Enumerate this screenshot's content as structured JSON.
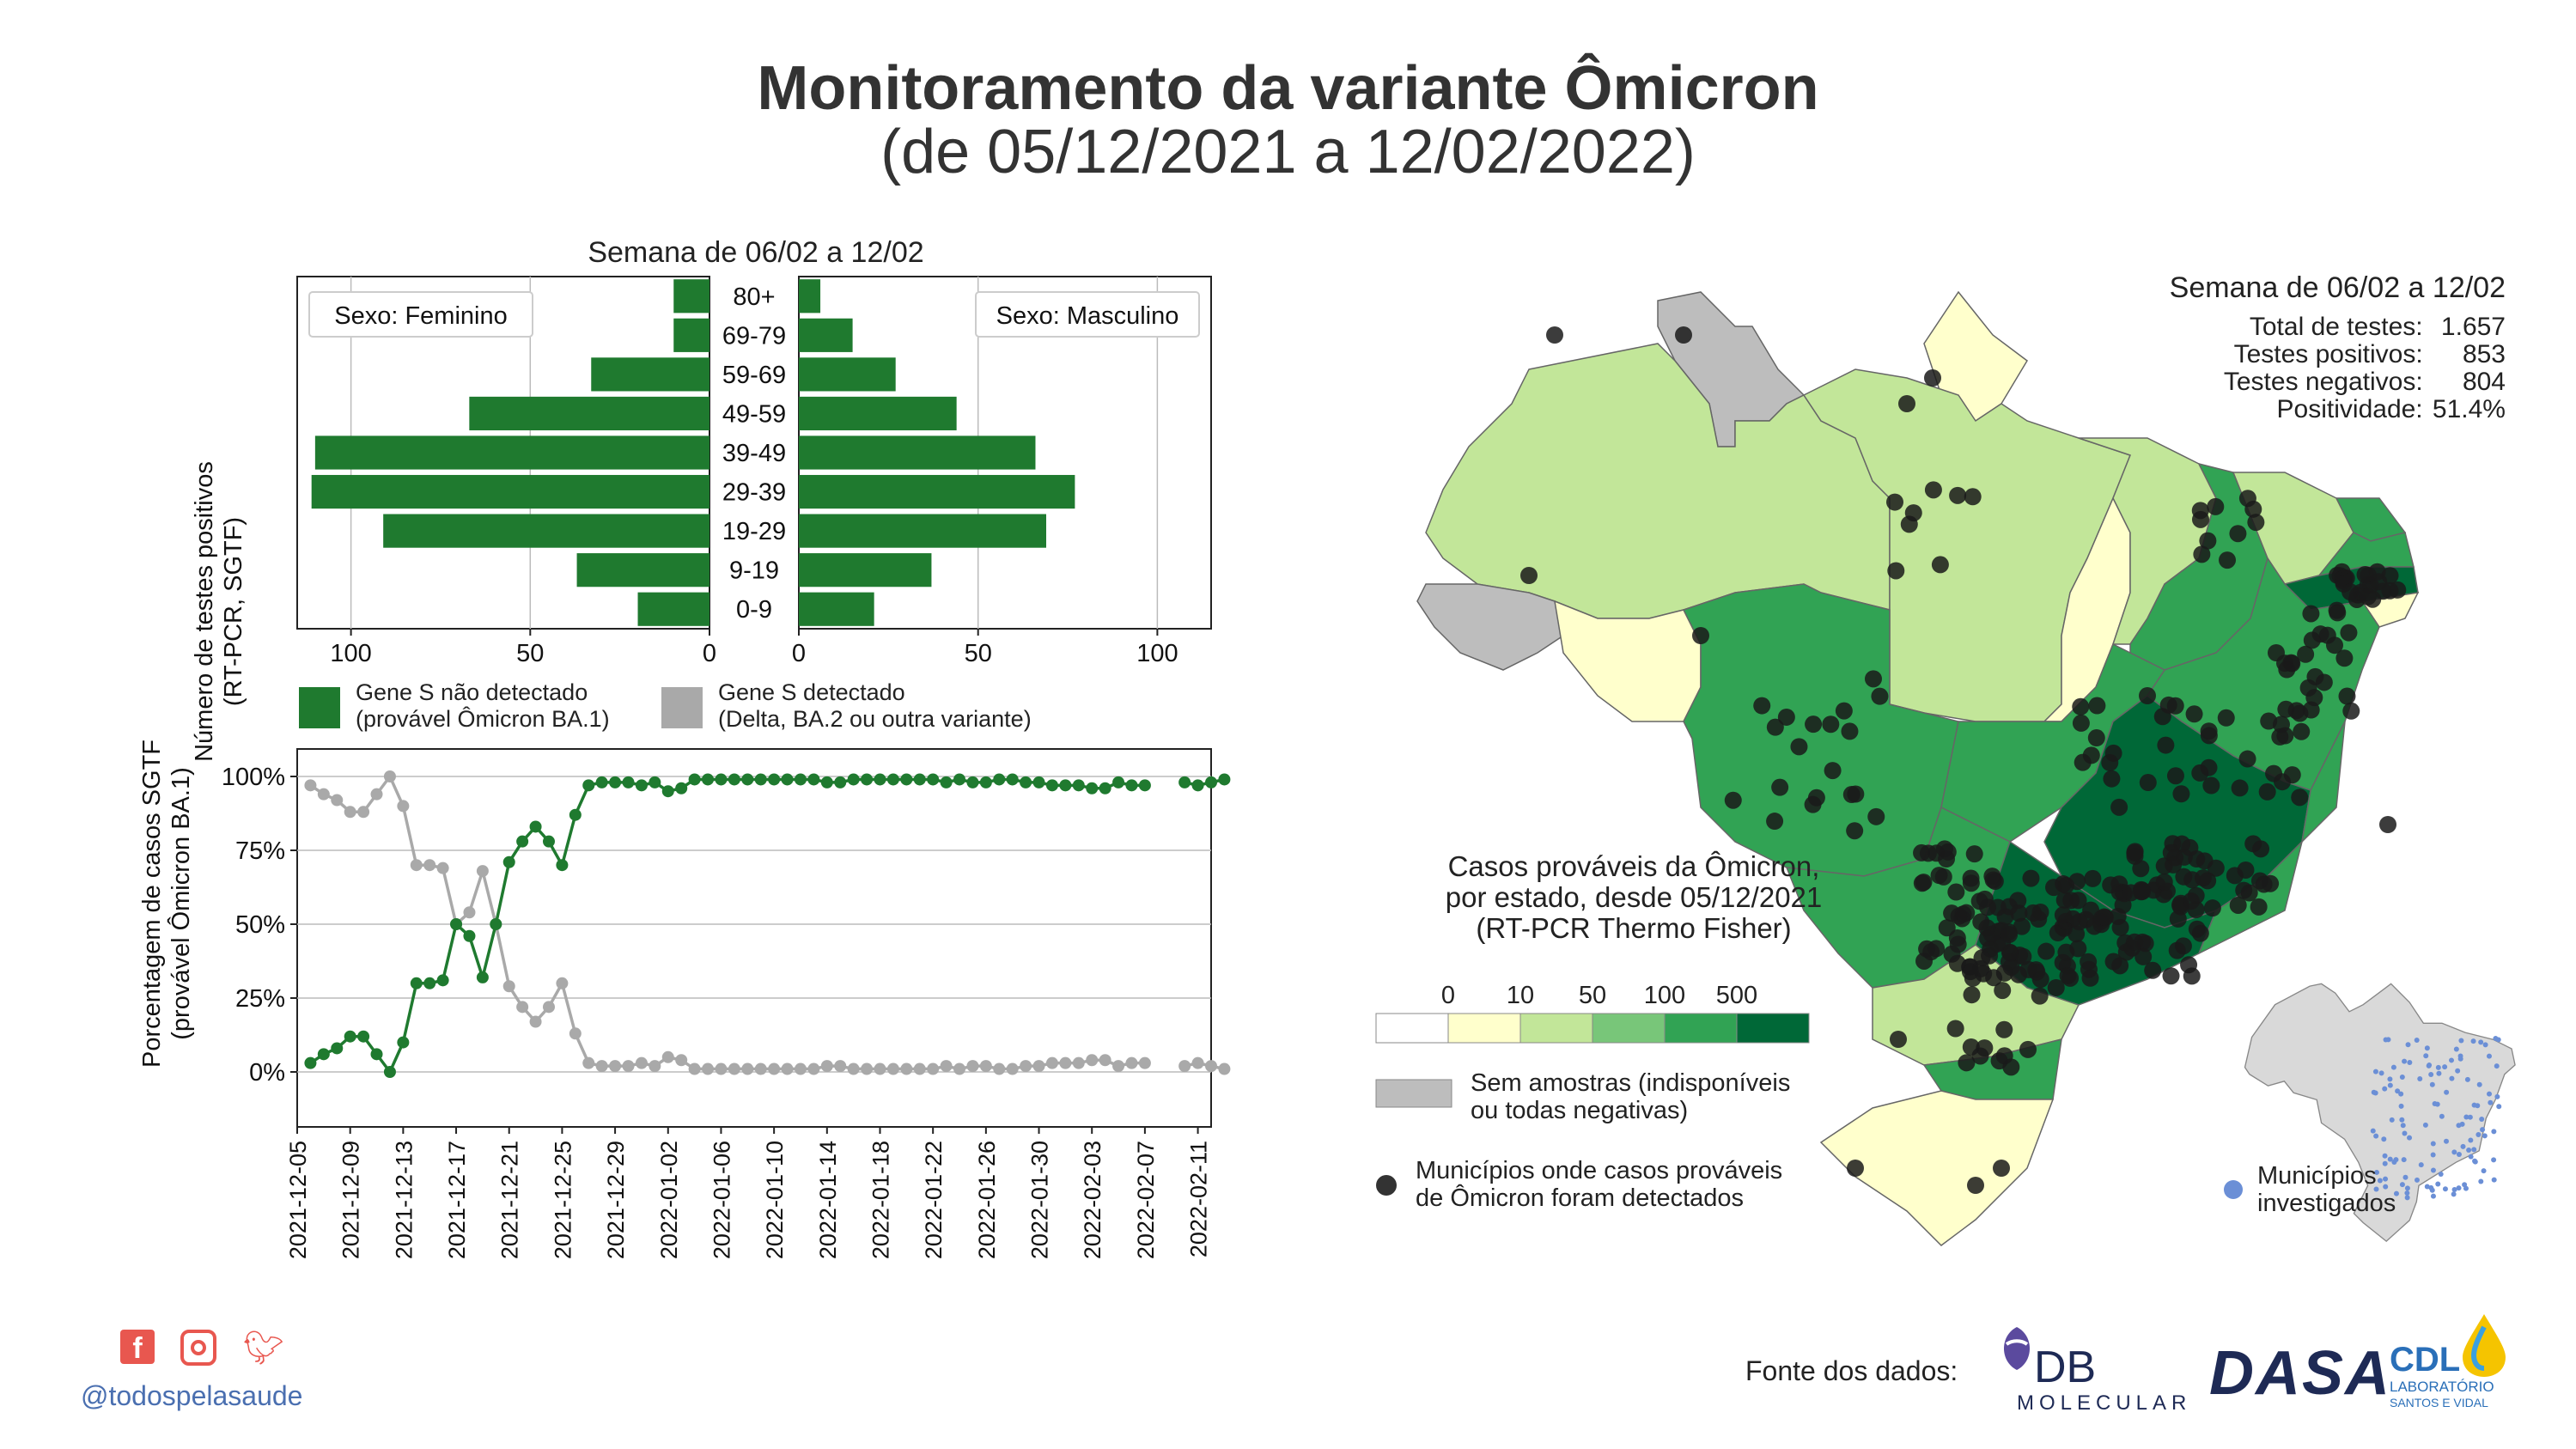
{
  "title": "Monitoramento da variante Ômicron",
  "subtitle": "(de 05/12/2021 a 12/02/2022)",
  "colors": {
    "green": "#1f7a2f",
    "gray": "#a9a9a9",
    "map_bins": [
      "#ffffff",
      "#ffffcc",
      "#c2e699",
      "#78c679",
      "#31a354",
      "#006837"
    ],
    "no_sample": "#bdbdbd",
    "investigated": "#6b8fd6"
  },
  "pyramid": {
    "title": "Semana de 06/02 a 12/02",
    "ylabel_line1": "Número de testes positivos",
    "ylabel_line2": "(RT-PCR, SGTF)",
    "female_label": "Sexo: Feminino",
    "male_label": "Sexo: Masculino",
    "age_groups": [
      "80+",
      "69-79",
      "59-69",
      "49-59",
      "39-49",
      "29-39",
      "19-29",
      "9-19",
      "0-9"
    ],
    "female": [
      10,
      10,
      33,
      67,
      110,
      111,
      91,
      37,
      20
    ],
    "male": [
      6,
      15,
      27,
      44,
      66,
      77,
      69,
      37,
      21
    ],
    "ticks_female": [
      "100",
      "50",
      "0"
    ],
    "ticks_male": [
      "0",
      "50",
      "100"
    ]
  },
  "legend_top": {
    "green_line1": "Gene S não detectado",
    "green_line2": "(provável Ômicron BA.1)",
    "gray_line1": "Gene S detectado",
    "gray_line2": "(Delta, BA.2 ou outra variante)"
  },
  "chart_data": [
    {
      "type": "bar",
      "title": "Semana de 06/02 a 12/02",
      "ylabel": "Número de testes positivos (RT-PCR, SGTF)",
      "categories": [
        "80+",
        "69-79",
        "59-69",
        "49-59",
        "39-49",
        "29-39",
        "19-29",
        "9-19",
        "0-9"
      ],
      "series": [
        {
          "name": "Sexo: Feminino",
          "values": [
            10,
            10,
            33,
            67,
            110,
            111,
            91,
            37,
            20
          ]
        },
        {
          "name": "Sexo: Masculino",
          "values": [
            6,
            15,
            27,
            44,
            66,
            77,
            69,
            37,
            21
          ]
        }
      ],
      "xlim": [
        0,
        115
      ]
    },
    {
      "type": "line",
      "ylabel": "Porcentagem de casos SGTF (provável Ômicron BA.1)",
      "ylim": [
        0,
        100
      ],
      "yticks": [
        "0%",
        "25%",
        "50%",
        "75%",
        "100%"
      ],
      "xticks": [
        "2021-12-05",
        "2021-12-09",
        "2021-12-13",
        "2021-12-17",
        "2021-12-21",
        "2021-12-25",
        "2021-12-29",
        "2022-01-02",
        "2022-01-06",
        "2022-01-10",
        "2022-01-14",
        "2022-01-18",
        "2022-01-22",
        "2022-01-26",
        "2022-01-30",
        "2022-02-03",
        "2022-02-07",
        "2022-02-11"
      ],
      "x_start": "2021-12-06",
      "series": [
        {
          "name": "Gene S não detectado (provável Ômicron BA.1)",
          "values": [
            3,
            6,
            8,
            12,
            12,
            6,
            0,
            10,
            30,
            30,
            31,
            50,
            46,
            32,
            50,
            71,
            78,
            83,
            78,
            70,
            87,
            97,
            98,
            98,
            98,
            97,
            98,
            95,
            96,
            99,
            99,
            99,
            99,
            99,
            99,
            99,
            99,
            99,
            99,
            98,
            98,
            99,
            99,
            99,
            99,
            99,
            99,
            99,
            98,
            99,
            98,
            98,
            99,
            99,
            98,
            98,
            97,
            97,
            97,
            96,
            96,
            98,
            97,
            97,
            null,
            null,
            98,
            97,
            98,
            99
          ]
        },
        {
          "name": "Gene S detectado (Delta, BA.2 ou outra variante)",
          "values": [
            97,
            94,
            92,
            88,
            88,
            94,
            100,
            90,
            70,
            70,
            69,
            50,
            54,
            68,
            50,
            29,
            22,
            17,
            22,
            30,
            13,
            3,
            2,
            2,
            2,
            3,
            2,
            5,
            4,
            1,
            1,
            1,
            1,
            1,
            1,
            1,
            1,
            1,
            1,
            2,
            2,
            1,
            1,
            1,
            1,
            1,
            1,
            1,
            2,
            1,
            2,
            2,
            1,
            1,
            2,
            2,
            3,
            3,
            3,
            4,
            4,
            2,
            3,
            3,
            null,
            null,
            2,
            3,
            2,
            1
          ]
        }
      ]
    }
  ],
  "line_chart": {
    "ylabel_line1": "Porcentagem de casos SGTF",
    "ylabel_line2": "(provável Ômicron BA.1)",
    "yticks": [
      "0%",
      "25%",
      "50%",
      "75%",
      "100%"
    ]
  },
  "map": {
    "stats_title": "Semana de 06/02 a 12/02",
    "stats": [
      {
        "label": "Total de testes:",
        "value": "1.657"
      },
      {
        "label": "Testes positivos:",
        "value": "853"
      },
      {
        "label": "Testes negativos:",
        "value": "804"
      },
      {
        "label": "Positividade:",
        "value": "51.4%"
      }
    ],
    "legend_title_1": "Casos prováveis da Ômicron,",
    "legend_title_2": "por estado, desde 05/12/2021",
    "legend_title_3": "(RT-PCR Thermo Fisher)",
    "bin_labels": [
      "0",
      "10",
      "50",
      "100",
      "500"
    ],
    "no_sample_1": "Sem amostras (indisponíveis",
    "no_sample_2": "ou todas negativas)",
    "muni_1": "Municípios onde casos prováveis",
    "muni_2": "de Ômicron foram detectados",
    "inset_1": "Municípios",
    "inset_2": "investigados"
  },
  "footer": {
    "handle": "@todospelasaude",
    "fonte": "Fonte dos dados:",
    "logo_db": "DB",
    "logo_db_sub": "MOLECULAR",
    "logo_dasa": "DASA",
    "logo_cdl": "CDL",
    "logo_cdl_sub1": "LABORATÓRIO",
    "logo_cdl_sub2": "SANTOS E VIDAL"
  }
}
